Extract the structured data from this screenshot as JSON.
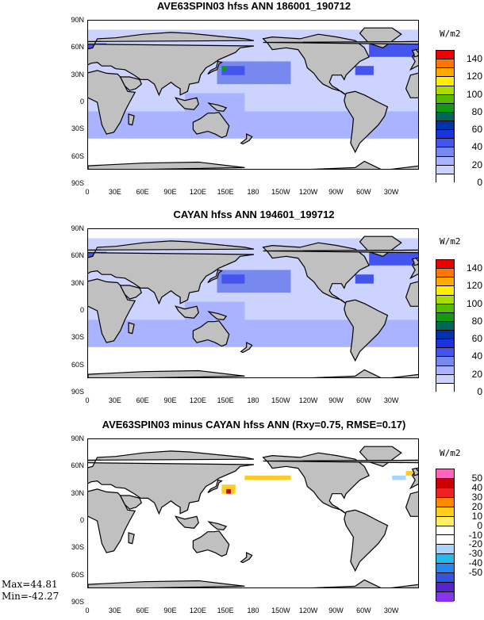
{
  "panels": [
    {
      "title": "AVE63SPIN03 hfss ANN 186001_190712",
      "units": "W/m2",
      "colorbar": {
        "labels": [
          "140",
          "120",
          "100",
          "80",
          "60",
          "40",
          "20",
          "0"
        ],
        "colors": [
          "#ee0000",
          "#ff7700",
          "#ffaa00",
          "#ffee00",
          "#aadd00",
          "#55bb00",
          "#119911",
          "#006655",
          "#0033aa",
          "#1a33dd",
          "#4455ee",
          "#7788ee",
          "#aab3ff",
          "#ccd3ff",
          "#ffffff"
        ]
      }
    },
    {
      "title": "CAYAN hfss ANN 194601_199712",
      "units": "W/m2",
      "colorbar": {
        "labels": [
          "140",
          "120",
          "100",
          "80",
          "60",
          "40",
          "20",
          "0"
        ],
        "colors": [
          "#ee0000",
          "#ff7700",
          "#ffaa00",
          "#ffee00",
          "#aadd00",
          "#55bb00",
          "#119911",
          "#006655",
          "#0033aa",
          "#1a33dd",
          "#4455ee",
          "#7788ee",
          "#aab3ff",
          "#ccd3ff",
          "#ffffff"
        ]
      }
    },
    {
      "title": "AVE63SPIN03 minus CAYAN hfss ANN (Rxy=0.75, RMSE=0.17)",
      "units": "W/m2",
      "colorbar": {
        "labels": [
          "50",
          "40",
          "30",
          "20",
          "10",
          "0",
          "-10",
          "-20",
          "-30",
          "-40",
          "-50"
        ],
        "colors": [
          "#ff66bb",
          "#cc0000",
          "#ee2222",
          "#ff8800",
          "#ffcc22",
          "#ffee66",
          "#ffffff",
          "#ffffff",
          "#aad4ff",
          "#22bbee",
          "#2288ee",
          "#3355dd",
          "#5522cc",
          "#8833ee"
        ]
      },
      "stats": {
        "max": "Max=44.81",
        "min": "Min=-42.27"
      }
    }
  ],
  "axes": {
    "y_ticks": [
      "90N",
      "60N",
      "30N",
      "0",
      "30S",
      "60S",
      "90S"
    ],
    "x_ticks": [
      "0",
      "30E",
      "60E",
      "90E",
      "120E",
      "150E",
      "180",
      "150W",
      "120W",
      "90W",
      "60W",
      "30W"
    ]
  },
  "colors": {
    "land": "#c0c0c0",
    "ocean_low": "#ccd3ff",
    "ocean_mid": "#aab3ff",
    "ocean_high": "#4455ee",
    "missing": "#ffffff"
  }
}
